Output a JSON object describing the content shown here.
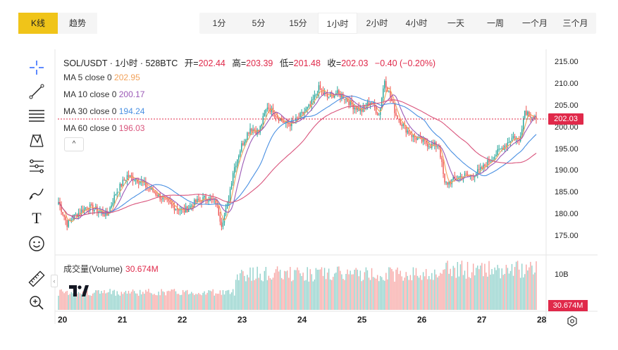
{
  "left_tabs": [
    {
      "label": "K线",
      "active": true
    },
    {
      "label": "趋势",
      "active": false
    }
  ],
  "intervals": [
    {
      "label": "1分",
      "active": false
    },
    {
      "label": "5分",
      "active": false
    },
    {
      "label": "15分",
      "active": false
    },
    {
      "label": "1小时",
      "active": true
    },
    {
      "label": "2小时",
      "active": false
    },
    {
      "label": "4小时",
      "active": false
    },
    {
      "label": "一天",
      "active": false
    },
    {
      "label": "一周",
      "active": false
    },
    {
      "label": "一个月",
      "active": false
    },
    {
      "label": "三个月",
      "active": false
    }
  ],
  "legend": {
    "symbol": "SOL/USDT · 1小时 · 528BTC",
    "open_label": "开=",
    "open": "202.44",
    "high_label": "高=",
    "high": "203.39",
    "low_label": "低=",
    "low": "201.48",
    "close_label": "收=",
    "close": "202.03",
    "change": "−0.40 (−0.20%)"
  },
  "ma": [
    {
      "label": "MA 5 close 0",
      "value": "202.95",
      "color": "#f2a25a"
    },
    {
      "label": "MA 10 close 0",
      "value": "200.17",
      "color": "#9b59b6"
    },
    {
      "label": "MA 30 close 0",
      "value": "194.24",
      "color": "#4a90e2"
    },
    {
      "label": "MA 60 close 0",
      "value": "196.03",
      "color": "#d9547c"
    }
  ],
  "collapse_glyph": "^",
  "volume": {
    "label": "成交量(Volume)",
    "value": "30.674M",
    "axis_label": "10B",
    "tag": "30.674M"
  },
  "price_tag": "202.03",
  "tools": [
    "crosshair-icon",
    "trendline-icon",
    "fib-icon",
    "pattern-icon",
    "projection-icon",
    "brush-icon",
    "text-icon",
    "emoji-icon",
    "ruler-icon",
    "zoom-in-icon"
  ],
  "text_tool_glyph": "T",
  "colors": {
    "up": "#26a69a",
    "down": "#ef5350",
    "accent": "#f0c419",
    "price_line": "#e0294a"
  },
  "chart_data": {
    "type": "candlestick",
    "y_ticks": [
      215.0,
      210.0,
      205.0,
      200.0,
      195.0,
      190.0,
      185.0,
      180.0,
      175.0
    ],
    "y_tick_labels": [
      "215.00",
      "210.00",
      "205.00",
      "200.00",
      "195.00",
      "190.00",
      "185.00",
      "180.00",
      "175.00"
    ],
    "ylim": [
      172.0,
      218.0
    ],
    "x_ticks": [
      "20",
      "21",
      "22",
      "23",
      "24",
      "25",
      "26",
      "27",
      "28"
    ],
    "close_anchors": [
      [
        0,
        183
      ],
      [
        6,
        178
      ],
      [
        12,
        180
      ],
      [
        20,
        182
      ],
      [
        28,
        181
      ],
      [
        34,
        180
      ],
      [
        40,
        185
      ],
      [
        48,
        189
      ],
      [
        56,
        188
      ],
      [
        64,
        186
      ],
      [
        72,
        184
      ],
      [
        80,
        182
      ],
      [
        88,
        181
      ],
      [
        96,
        183
      ],
      [
        104,
        184
      ],
      [
        110,
        183
      ],
      [
        114,
        178
      ],
      [
        118,
        182
      ],
      [
        122,
        190
      ],
      [
        128,
        196
      ],
      [
        134,
        200
      ],
      [
        140,
        199
      ],
      [
        146,
        205
      ],
      [
        152,
        203
      ],
      [
        158,
        201
      ],
      [
        164,
        201
      ],
      [
        170,
        203
      ],
      [
        176,
        205
      ],
      [
        182,
        209
      ],
      [
        188,
        207
      ],
      [
        194,
        208
      ],
      [
        200,
        207
      ],
      [
        206,
        205
      ],
      [
        212,
        204
      ],
      [
        218,
        206
      ],
      [
        224,
        203
      ],
      [
        228,
        211
      ],
      [
        232,
        207
      ],
      [
        236,
        203
      ],
      [
        242,
        200
      ],
      [
        248,
        198
      ],
      [
        254,
        197
      ],
      [
        260,
        196
      ],
      [
        266,
        196
      ],
      [
        270,
        187
      ],
      [
        276,
        188
      ],
      [
        282,
        189
      ],
      [
        288,
        189
      ],
      [
        294,
        190
      ],
      [
        300,
        192
      ],
      [
        306,
        194
      ],
      [
        312,
        196
      ],
      [
        318,
        198
      ],
      [
        322,
        197
      ],
      [
        326,
        204
      ],
      [
        330,
        203
      ],
      [
        334,
        202
      ]
    ],
    "price_line": 202.03
  }
}
